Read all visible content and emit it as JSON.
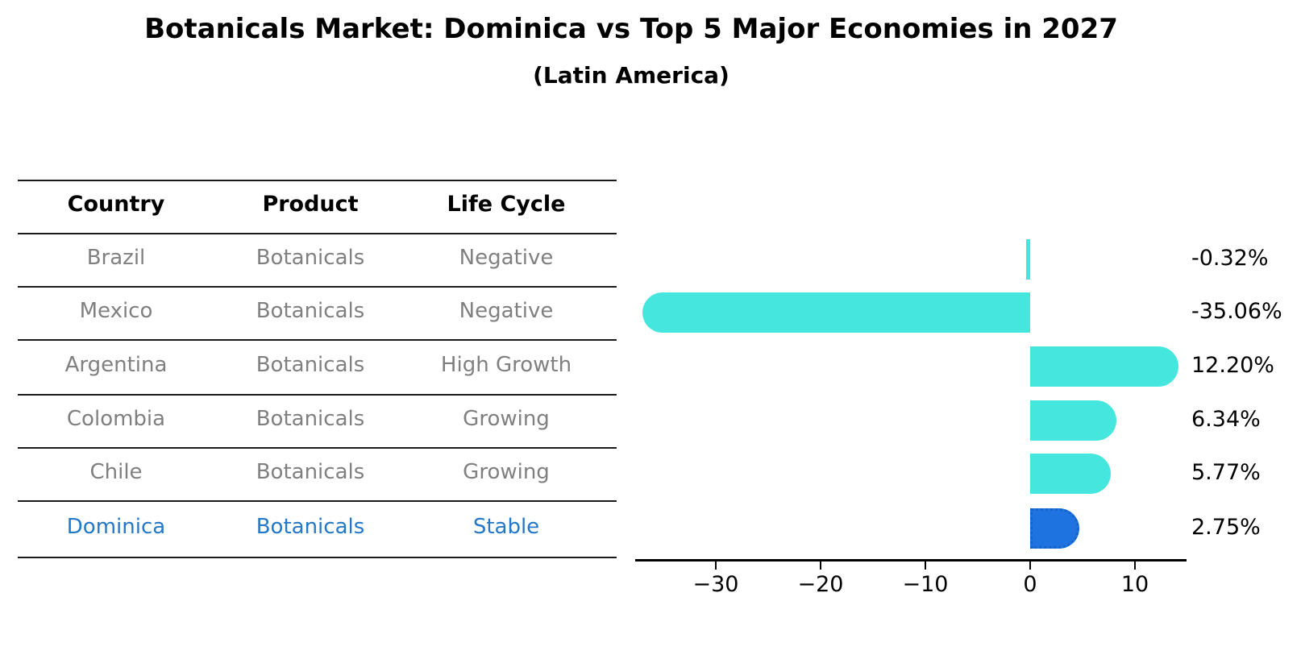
{
  "header": {
    "title": "Botanicals Market: Dominica vs Top 5 Major Economies in 2027",
    "subtitle": "(Latin America)"
  },
  "table": {
    "headers": [
      "Country",
      "Product",
      "Life Cycle"
    ],
    "rows": [
      {
        "country": "Brazil",
        "product": "Botanicals",
        "life_cycle": "Negative"
      },
      {
        "country": "Mexico",
        "product": "Botanicals",
        "life_cycle": "Negative"
      },
      {
        "country": "Argentina",
        "product": "Botanicals",
        "life_cycle": "High Growth"
      },
      {
        "country": "Colombia",
        "product": "Botanicals",
        "life_cycle": "Growing"
      },
      {
        "country": "Chile",
        "product": "Botanicals",
        "life_cycle": "Growing"
      },
      {
        "country": "Dominica",
        "product": "Botanicals",
        "life_cycle": "Stable"
      }
    ],
    "highlight_row": "Dominica",
    "text_color": "#808080",
    "highlight_text_color": "#2478C8",
    "line_color": "#1a1a1a"
  },
  "chart_data": {
    "type": "bar",
    "orientation": "horizontal",
    "title": "Botanicals Market: Dominica vs Top 5 Major Economies in 2027",
    "subtitle": "(Latin America)",
    "categories": [
      "Brazil",
      "Mexico",
      "Argentina",
      "Colombia",
      "Chile",
      "Dominica"
    ],
    "values": [
      -0.32,
      -35.06,
      12.2,
      6.34,
      5.77,
      2.75
    ],
    "value_labels": [
      "-0.32%",
      "-35.06%",
      "12.20%",
      "6.34%",
      "5.77%",
      "2.75%"
    ],
    "highlight_category": "Dominica",
    "bar_color": "#45E6DE",
    "highlight_bar_color": "#1E73E0",
    "highlight_edge_color": "#1563C8",
    "xlabel": "",
    "ylabel": "",
    "xlim": [
      -37.7,
      14.9
    ],
    "xticks": [
      -30,
      -20,
      -10,
      0,
      10
    ],
    "xtick_labels": [
      "−30",
      "−20",
      "−10",
      "0",
      "10"
    ],
    "grid": false,
    "legend": false
  }
}
